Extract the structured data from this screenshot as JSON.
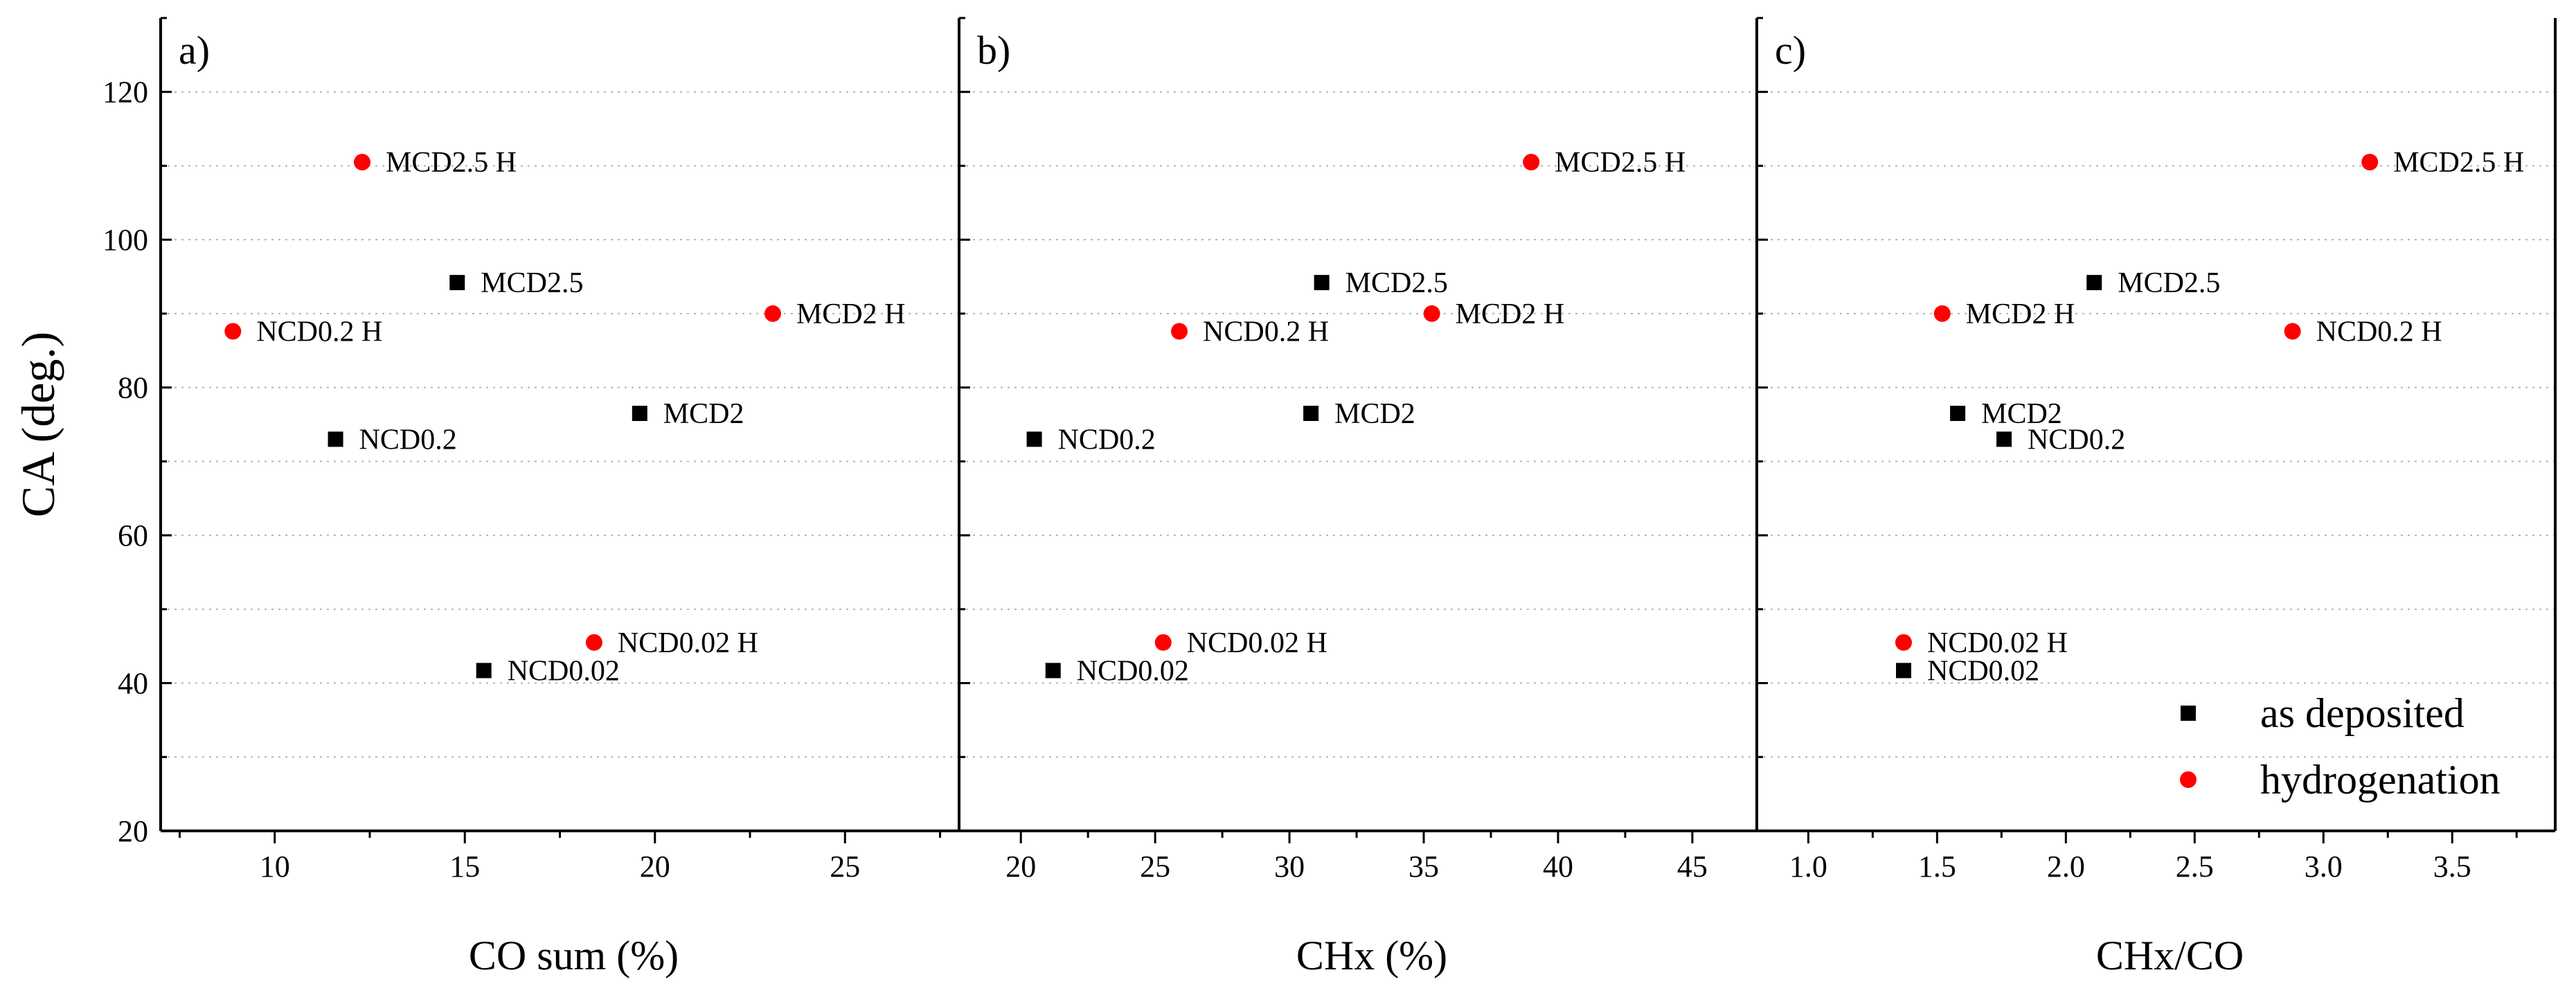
{
  "chart_data": [
    {
      "type": "scatter",
      "panel_label": "a)",
      "xlabel": "CO sum (%)",
      "ylabel": "CA (deg.)",
      "xlim": [
        7,
        28
      ],
      "ylim": [
        20,
        130
      ],
      "xticks": [
        10,
        15,
        20,
        25
      ],
      "xtick_labels": [
        "10",
        "15",
        "20",
        "25"
      ],
      "yticks": [
        20,
        40,
        60,
        80,
        100,
        120
      ],
      "ytick_labels": [
        "20",
        "40",
        "60",
        "80",
        "100",
        "120"
      ],
      "grid": "horizontal dotted",
      "series": [
        {
          "name": "as deposited",
          "marker": "square",
          "color": "#000000",
          "points": [
            {
              "label": "MCD2.5",
              "x": 14.8,
              "y": 94.2
            },
            {
              "label": "MCD2",
              "x": 19.6,
              "y": 76.5
            },
            {
              "label": "NCD0.2",
              "x": 11.6,
              "y": 73.0
            },
            {
              "label": "NCD0.02",
              "x": 15.5,
              "y": 41.7
            }
          ]
        },
        {
          "name": "hydrogenation",
          "marker": "circle",
          "color": "#ff0000",
          "points": [
            {
              "label": "MCD2.5 H",
              "x": 12.3,
              "y": 110.5
            },
            {
              "label": "MCD2 H",
              "x": 23.1,
              "y": 90.0
            },
            {
              "label": "NCD0.2 H",
              "x": 8.9,
              "y": 87.6
            },
            {
              "label": "NCD0.02 H",
              "x": 18.4,
              "y": 45.5
            }
          ]
        }
      ]
    },
    {
      "type": "scatter",
      "panel_label": "b)",
      "xlabel": "CHx (%)",
      "ylabel": "",
      "xlim": [
        17.7,
        47.4
      ],
      "ylim": [
        20,
        130
      ],
      "xticks": [
        20,
        25,
        30,
        35,
        40,
        45
      ],
      "xtick_labels": [
        "20",
        "25",
        "30",
        "35",
        "40",
        "45"
      ],
      "yticks": [
        20,
        40,
        60,
        80,
        100,
        120
      ],
      "ytick_labels": [],
      "grid": "horizontal dotted",
      "series": [
        {
          "name": "as deposited",
          "marker": "square",
          "color": "#000000",
          "points": [
            {
              "label": "MCD2.5",
              "x": 31.2,
              "y": 94.2
            },
            {
              "label": "MCD2",
              "x": 30.8,
              "y": 76.5
            },
            {
              "label": "NCD0.2",
              "x": 20.5,
              "y": 73.0
            },
            {
              "label": "NCD0.02",
              "x": 21.2,
              "y": 41.7
            }
          ]
        },
        {
          "name": "hydrogenation",
          "marker": "circle",
          "color": "#ff0000",
          "points": [
            {
              "label": "MCD2.5 H",
              "x": 39.0,
              "y": 110.5
            },
            {
              "label": "MCD2 H",
              "x": 35.3,
              "y": 90.0
            },
            {
              "label": "NCD0.2 H",
              "x": 25.9,
              "y": 87.6
            },
            {
              "label": "NCD0.02 H",
              "x": 25.3,
              "y": 45.5
            }
          ]
        }
      ]
    },
    {
      "type": "scatter",
      "panel_label": "c)",
      "xlabel": "CHx/CO",
      "ylabel": "",
      "xlim": [
        0.8,
        3.9
      ],
      "ylim": [
        20,
        130
      ],
      "xticks": [
        1.0,
        1.5,
        2.0,
        2.5,
        3.0,
        3.5
      ],
      "xtick_labels": [
        "1.0",
        "1.5",
        "2.0",
        "2.5",
        "3.0",
        "3.5"
      ],
      "yticks": [
        20,
        40,
        60,
        80,
        100,
        120
      ],
      "ytick_labels": [],
      "grid": "horizontal dotted",
      "legend": {
        "placement": "bottom-right",
        "entries": [
          "as deposited",
          "hydrogenation"
        ]
      },
      "series": [
        {
          "name": "as deposited",
          "marker": "square",
          "color": "#000000",
          "points": [
            {
              "label": "MCD2.5",
              "x": 2.11,
              "y": 94.2
            },
            {
              "label": "MCD2",
              "x": 1.58,
              "y": 76.5
            },
            {
              "label": "NCD0.2",
              "x": 1.76,
              "y": 73.0
            },
            {
              "label": "NCD0.02",
              "x": 1.37,
              "y": 41.7
            }
          ]
        },
        {
          "name": "hydrogenation",
          "marker": "circle",
          "color": "#ff0000",
          "points": [
            {
              "label": "MCD2.5 H",
              "x": 3.18,
              "y": 110.5
            },
            {
              "label": "MCD2 H",
              "x": 1.52,
              "y": 90.0
            },
            {
              "label": "NCD0.2 H",
              "x": 2.88,
              "y": 87.6
            },
            {
              "label": "NCD0.02 H",
              "x": 1.37,
              "y": 45.5
            }
          ]
        }
      ]
    }
  ]
}
